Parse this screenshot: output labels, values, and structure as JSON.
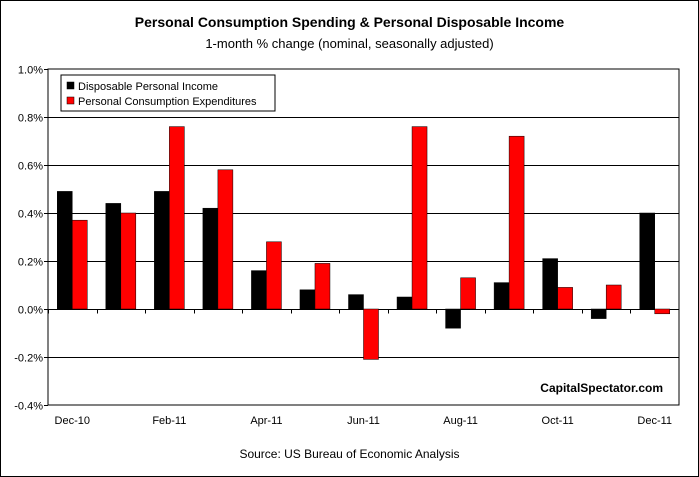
{
  "chart_data": {
    "type": "bar",
    "title": "Personal Consumption Spending & Personal Disposable Income",
    "subtitle": "1-month % change (nominal, seasonally adjusted)",
    "source": "Source: US Bureau of Economic Analysis",
    "watermark": "CapitalSpectator.com",
    "categories": [
      "Dec-10",
      "Jan-11",
      "Feb-11",
      "Mar-11",
      "Apr-11",
      "May-11",
      "Jun-11",
      "Jul-11",
      "Aug-11",
      "Sep-11",
      "Oct-11",
      "Nov-11",
      "Dec-11"
    ],
    "x_tick_labels": [
      "Dec-10",
      "",
      "Feb-11",
      "",
      "Apr-11",
      "",
      "Jun-11",
      "",
      "Aug-11",
      "",
      "Oct-11",
      "",
      "Dec-11"
    ],
    "series": [
      {
        "name": "Disposable Personal Income",
        "color": "#000000",
        "values": [
          0.49,
          0.44,
          0.49,
          0.42,
          0.16,
          0.08,
          0.06,
          0.05,
          -0.08,
          0.11,
          0.21,
          -0.04,
          0.4
        ]
      },
      {
        "name": "Personal Consumption Expenditures",
        "color": "#ff0000",
        "values": [
          0.37,
          0.4,
          0.76,
          0.58,
          0.28,
          0.19,
          -0.21,
          0.76,
          0.13,
          0.72,
          0.09,
          0.1,
          -0.02
        ]
      }
    ],
    "y_ticks": [
      "1.0%",
      "0.8%",
      "0.6%",
      "0.4%",
      "0.2%",
      "0.0%",
      "-0.2%",
      "-0.4%"
    ],
    "y_tick_values": [
      1.0,
      0.8,
      0.6,
      0.4,
      0.2,
      0.0,
      -0.2,
      -0.4
    ],
    "ylim": [
      -0.4,
      1.0
    ],
    "grid": true,
    "legend_position": "top-left"
  }
}
